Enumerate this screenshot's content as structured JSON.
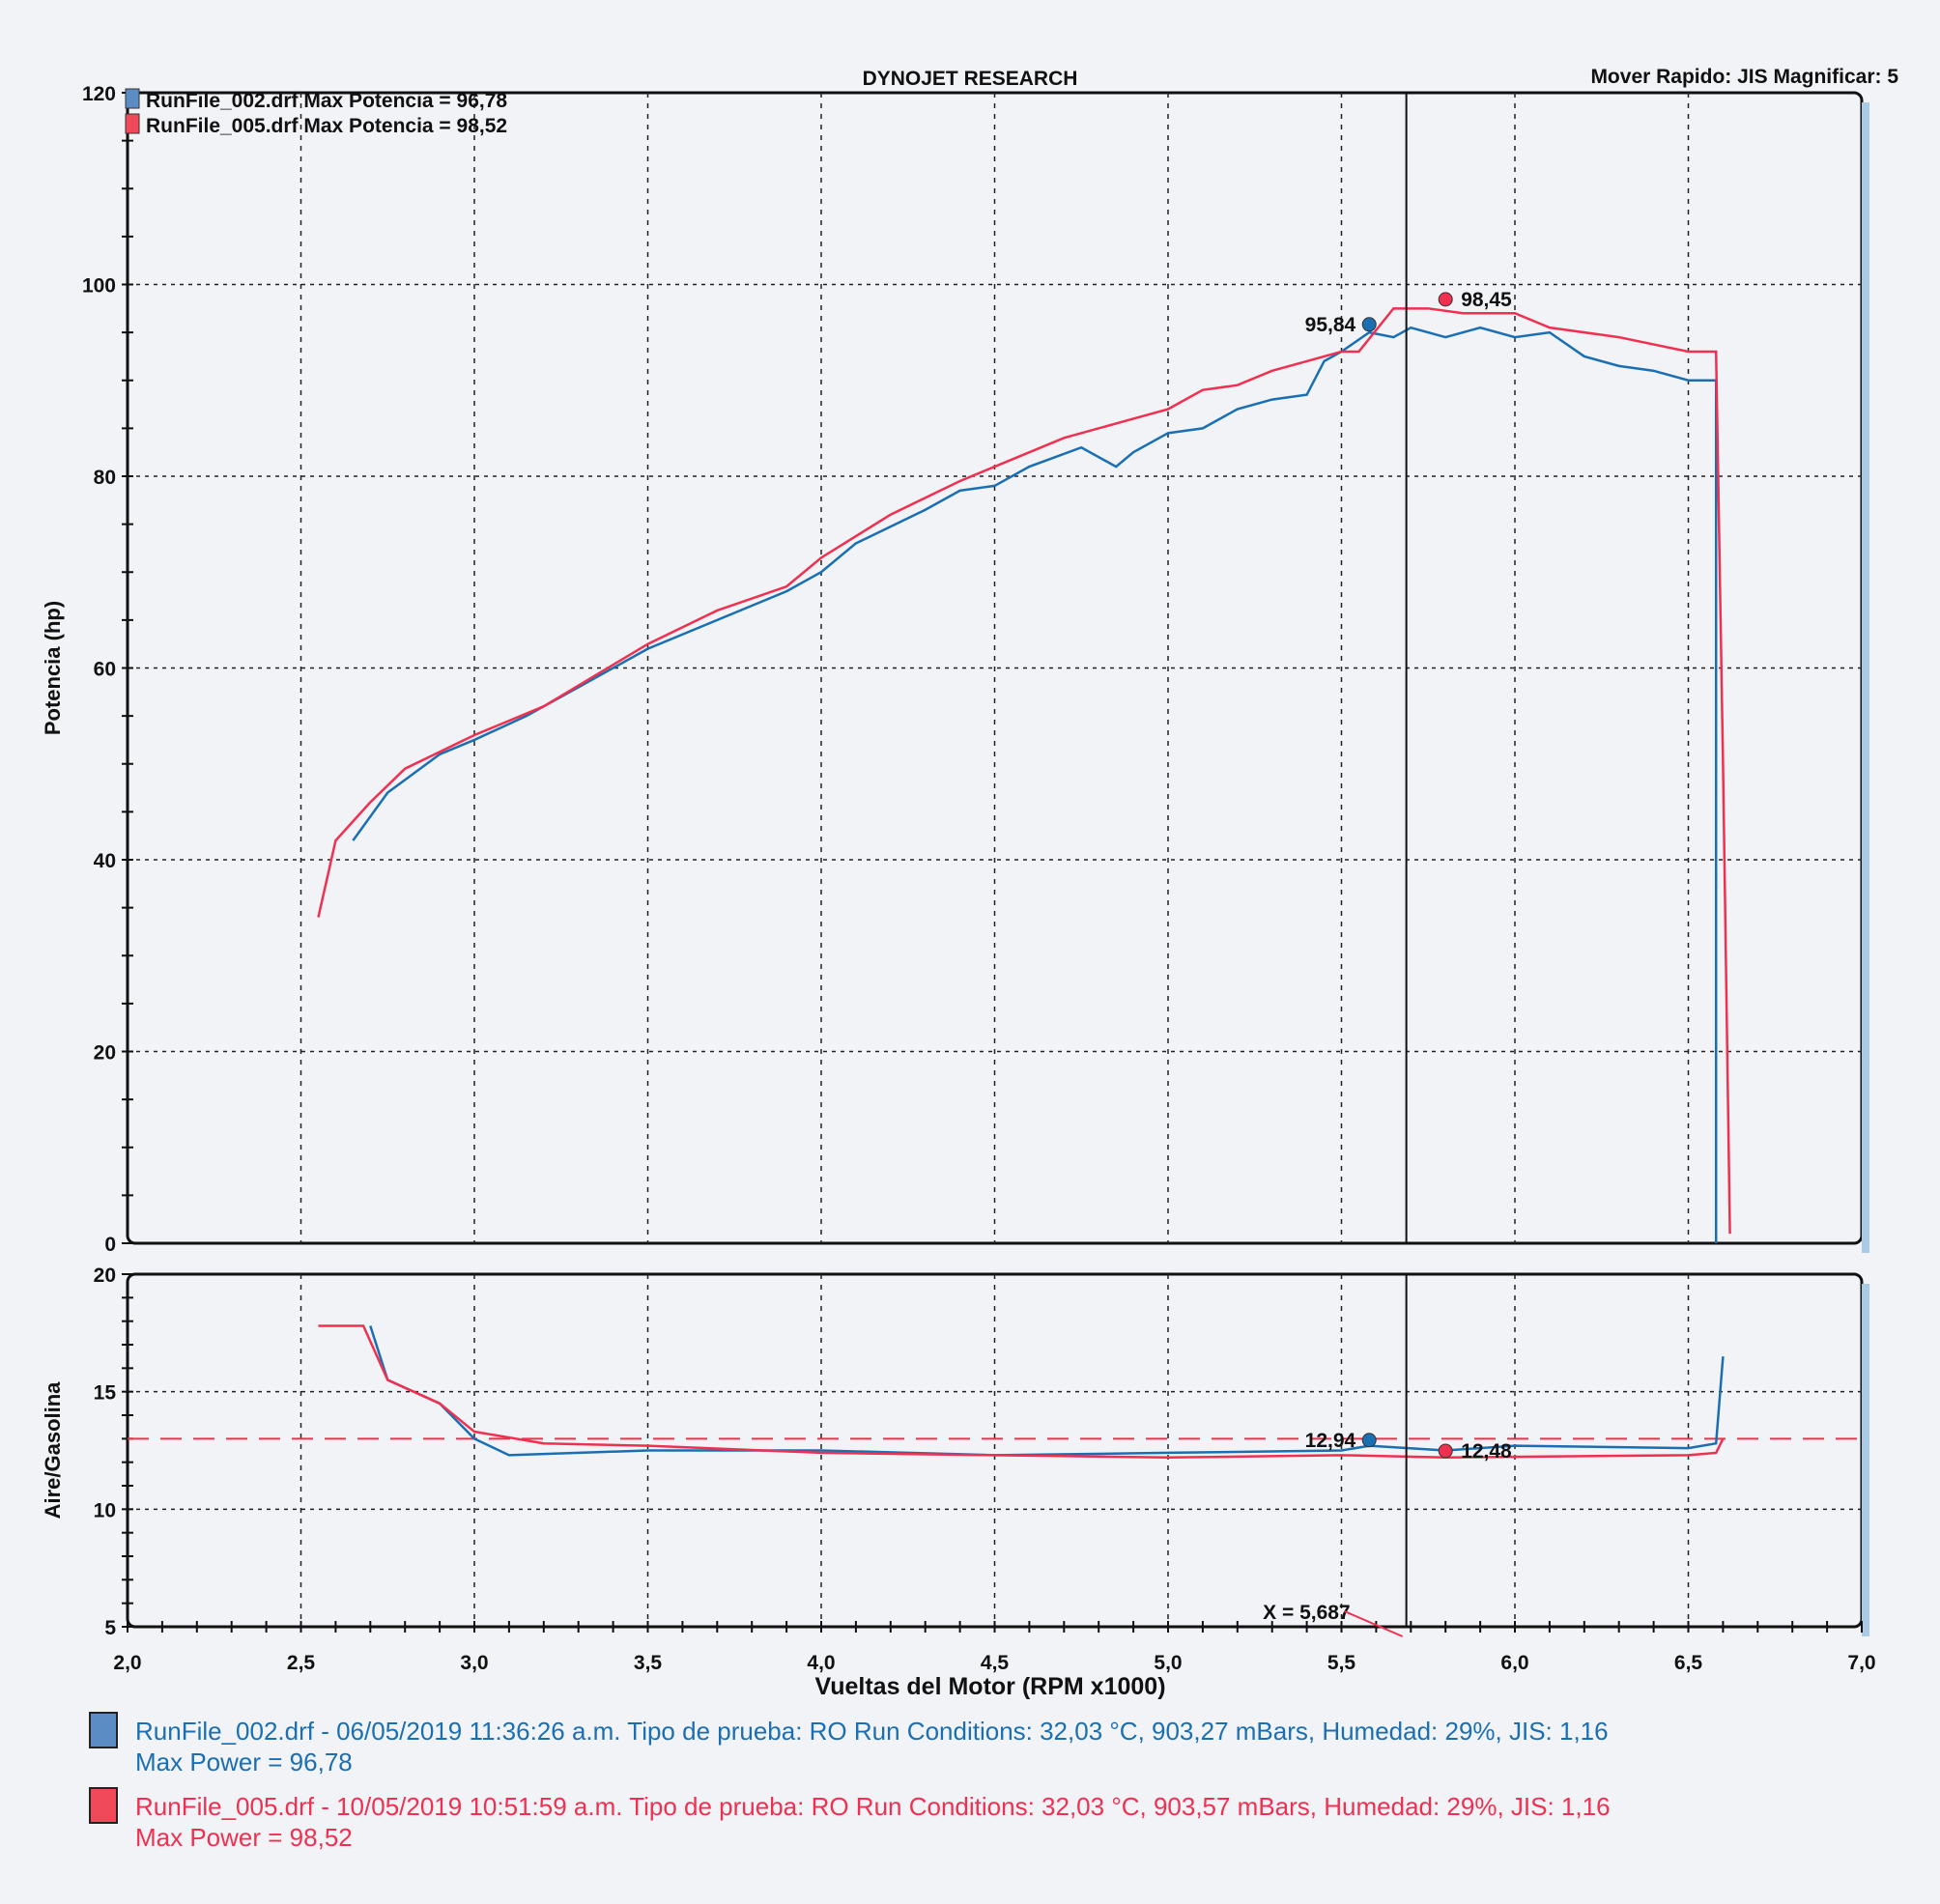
{
  "header": {
    "title": "DYNOJET RESEARCH",
    "mode": "Mover Rapido: JIS  Magnificar: 5"
  },
  "colors": {
    "run1": "#1a6fb3",
    "run2": "#f03050",
    "grid": "#222222"
  },
  "chart_data": [
    {
      "type": "line",
      "title": "DYNOJET RESEARCH",
      "ylabel": "Potencia (hp)",
      "xlabel": "Vueltas del Motor (RPM x1000)",
      "xlim": [
        2.0,
        7.0
      ],
      "ylim": [
        0,
        120
      ],
      "xticks": [
        "2,0",
        "2,5",
        "3,0",
        "3,5",
        "4,0",
        "4,5",
        "5,0",
        "5,5",
        "6,0",
        "6,5",
        "7,0"
      ],
      "yticks": [
        "0",
        "20",
        "40",
        "60",
        "80",
        "100",
        "120"
      ],
      "legend": [
        "RunFile_002.drf Max Potencia = 96,78",
        "RunFile_005.drf Max Potencia = 98,52"
      ],
      "legend_placement": "top-left",
      "grid": true,
      "series": [
        {
          "name": "RunFile_002.drf",
          "x": [
            2.65,
            2.75,
            2.9,
            3.0,
            3.15,
            3.3,
            3.5,
            3.7,
            3.9,
            4.0,
            4.1,
            4.3,
            4.4,
            4.5,
            4.6,
            4.75,
            4.85,
            4.9,
            5.0,
            5.1,
            5.2,
            5.3,
            5.4,
            5.45,
            5.5,
            5.58,
            5.65,
            5.7,
            5.8,
            5.9,
            6.0,
            6.1,
            6.2,
            6.3,
            6.4,
            6.5,
            6.58,
            6.58
          ],
          "y": [
            42,
            47,
            51,
            52.5,
            55,
            58,
            62,
            65,
            68,
            70,
            73,
            76.5,
            78.5,
            79,
            81,
            83,
            81,
            82.5,
            84.5,
            85,
            87,
            88,
            88.5,
            92,
            93,
            95,
            94.5,
            95.5,
            94.5,
            95.5,
            94.5,
            95,
            92.5,
            91.5,
            91,
            90,
            90,
            0
          ]
        },
        {
          "name": "RunFile_005.drf",
          "x": [
            2.55,
            2.6,
            2.7,
            2.8,
            3.0,
            3.2,
            3.5,
            3.7,
            3.9,
            4.0,
            4.2,
            4.4,
            4.5,
            4.7,
            4.9,
            5.0,
            5.1,
            5.2,
            5.3,
            5.4,
            5.5,
            5.55,
            5.65,
            5.75,
            5.85,
            6.0,
            6.1,
            6.3,
            6.5,
            6.58,
            6.6,
            6.62
          ],
          "y": [
            34,
            42,
            46,
            49.5,
            53,
            56,
            62.5,
            66,
            68.5,
            71.5,
            76,
            79.5,
            81,
            84,
            86,
            87,
            89,
            89.5,
            91,
            92,
            93,
            93,
            97.5,
            97.5,
            97,
            97,
            95.5,
            94.5,
            93,
            93,
            50,
            1
          ]
        }
      ],
      "markers": [
        {
          "series": 0,
          "x": 5.58,
          "y": 95.84,
          "label": "95,84"
        },
        {
          "series": 1,
          "x": 5.8,
          "y": 98.45,
          "label": "98,45"
        }
      ]
    },
    {
      "type": "line",
      "ylabel": "Aire/Gasolina",
      "xlim": [
        2.0,
        7.0
      ],
      "ylim": [
        5,
        20
      ],
      "yticks": [
        "5",
        "10",
        "15",
        "20"
      ],
      "target_afr": 13,
      "series": [
        {
          "name": "RunFile_002.drf",
          "x": [
            2.7,
            2.75,
            2.9,
            3.0,
            3.1,
            3.5,
            4.0,
            4.5,
            5.0,
            5.5,
            5.58,
            5.8,
            6.0,
            6.5,
            6.58,
            6.6
          ],
          "y": [
            17.8,
            15.5,
            14.5,
            13,
            12.3,
            12.5,
            12.5,
            12.3,
            12.4,
            12.5,
            12.7,
            12.5,
            12.7,
            12.6,
            12.8,
            16.5
          ]
        },
        {
          "name": "RunFile_005.drf",
          "x": [
            2.55,
            2.68,
            2.75,
            2.9,
            3.0,
            3.2,
            3.5,
            4.0,
            4.5,
            5.0,
            5.5,
            5.8,
            6.5,
            6.58,
            6.6
          ],
          "y": [
            17.8,
            17.8,
            15.5,
            14.5,
            13.3,
            12.8,
            12.7,
            12.4,
            12.3,
            12.2,
            12.3,
            12.2,
            12.3,
            12.4,
            13
          ]
        }
      ],
      "markers": [
        {
          "series": 0,
          "x": 5.58,
          "y": 12.94,
          "label": "12,94"
        },
        {
          "series": 1,
          "x": 5.8,
          "y": 12.48,
          "label": "12,48"
        }
      ],
      "cursor": {
        "x": 5.687,
        "label": "X = 5,687"
      }
    }
  ],
  "footer": {
    "run1": {
      "line1": "RunFile_002.drf - 06/05/2019 11:36:26 a.m.  Tipo de prueba: RO  Run Conditions: 32,03 °C, 903,27 mBars,  Humedad: 29%, JIS: 1,16",
      "line2": "Max Power = 96,78"
    },
    "run2": {
      "line1": "RunFile_005.drf - 10/05/2019 10:51:59 a.m.  Tipo de prueba: RO  Run Conditions: 32,03 °C, 903,57 mBars,  Humedad: 29%, JIS: 1,16",
      "line2": "Max Power = 98,52"
    }
  }
}
